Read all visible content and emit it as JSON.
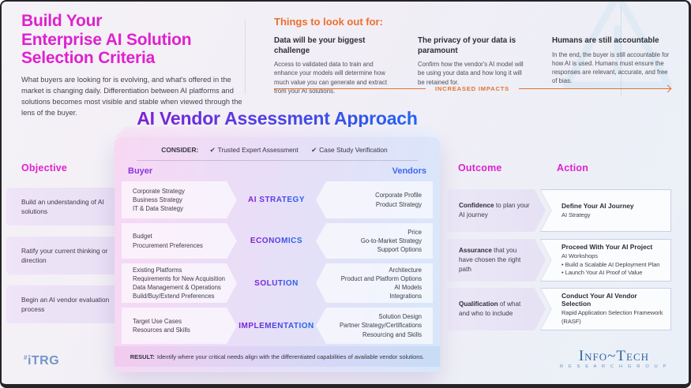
{
  "header": {
    "title_lines": [
      "Build Your",
      "Enterprise AI Solution",
      "Selection Criteria"
    ],
    "subtitle": "What buyers are looking for is evolving, and what's offered in the market is changing daily. Differentiation between AI platforms and solutions becomes most visible and stable when viewed through the lens of the buyer.",
    "lookout": {
      "heading": "Things to look out for:",
      "items": [
        {
          "title": "Data will be your biggest challenge",
          "body": "Access to validated data to train and enhance your models will determine how much value you can generate and extract from your AI solutions."
        },
        {
          "title": "The privacy of your data is paramount",
          "body": "Confirm how the vendor's AI model will be using your data and how long it will be retained for."
        },
        {
          "title": "Humans are still accountable",
          "body": "In the end, the buyer is still accountable for how AI is used. Humans must ensure the responses are relevant, accurate, and free of bias."
        }
      ],
      "impact_label": "INCREASED IMPACTS"
    }
  },
  "diagram": {
    "title": "AI Vendor Assessment Approach",
    "consider": {
      "label": "CONSIDER:",
      "check": "✔",
      "items": [
        "Trusted Expert Assessment",
        "Case Study Verification"
      ]
    },
    "buyer_header": "Buyer",
    "vendors_header": "Vendors",
    "rows": [
      {
        "category": "AI STRATEGY",
        "buyer": [
          "Corporate Strategy",
          "Business Strategy",
          "IT & Data Strategy"
        ],
        "vendor": [
          "Corporate Profile",
          "Product Strategy"
        ]
      },
      {
        "category": "ECONOMICS",
        "buyer": [
          "Budget",
          "Procurement Preferences"
        ],
        "vendor": [
          "Price",
          "Go-to-Market Strategy",
          "Support Options"
        ]
      },
      {
        "category": "SOLUTION",
        "buyer": [
          "Existing Platforms",
          "Requirements for New Acquisition",
          "Data Management & Operations",
          "Build/Buy/Extend Preferences"
        ],
        "vendor": [
          "Architecture",
          "Product and Platform Options",
          "AI Models",
          "Integrations"
        ]
      },
      {
        "category": "IMPLEMENTATION",
        "buyer": [
          "Target Use Cases",
          "Resources and Skills"
        ],
        "vendor": [
          "Solution Design",
          "Partner Strategy/Certifications",
          "Resourcing and Skills"
        ]
      }
    ],
    "result": {
      "label": "RESULT:",
      "text": "Identify where your critical needs align with the differentiated capabilities of available vendor solutions."
    }
  },
  "objective": {
    "header": "Objective",
    "items": [
      "Build an understanding of AI solutions",
      "Ratify your current thinking or direction",
      "Begin an AI vendor evaluation process"
    ]
  },
  "outcome": {
    "header": "Outcome",
    "items": [
      {
        "bold": "Confidence",
        "rest": " to plan your AI journey"
      },
      {
        "bold": "Assurance",
        "rest": " that you have chosen the right path"
      },
      {
        "bold": "Qualification",
        "rest": " of what and who to include"
      }
    ]
  },
  "action": {
    "header": "Action",
    "items": [
      {
        "title": "Define Your AI Journey",
        "lines": [
          "AI Strategy"
        ]
      },
      {
        "title": "Proceed With Your AI Project",
        "lines": [
          "AI Workshops",
          "•  Build a Scalable AI Deployment Plan",
          "•  Launch Your AI Proof of Value"
        ]
      },
      {
        "title": "Conduct Your AI Vendor Selection",
        "lines": [
          "Rapid Application Selection Framework (RASF)"
        ]
      }
    ]
  },
  "footer": {
    "itrg_mark": "#",
    "itrg_text": "iTRG",
    "infotech_text": "Info~Tech",
    "infotech_sub": "R E S E A R C H   G R O U P"
  },
  "colors": {
    "accent_magenta": "#DE21CE",
    "accent_orange": "#ED6F2D",
    "buyer_purple": "#8B35DF",
    "vendors_blue": "#3C67F0",
    "category_gradient_start": "#6229D7",
    "category_gradient_end": "#2E68F2",
    "panel_pink": "#F8D8F3",
    "panel_blue": "#D8E7FA",
    "logo_blue": "#2F689F",
    "itrg_blue": "#7396C8"
  }
}
